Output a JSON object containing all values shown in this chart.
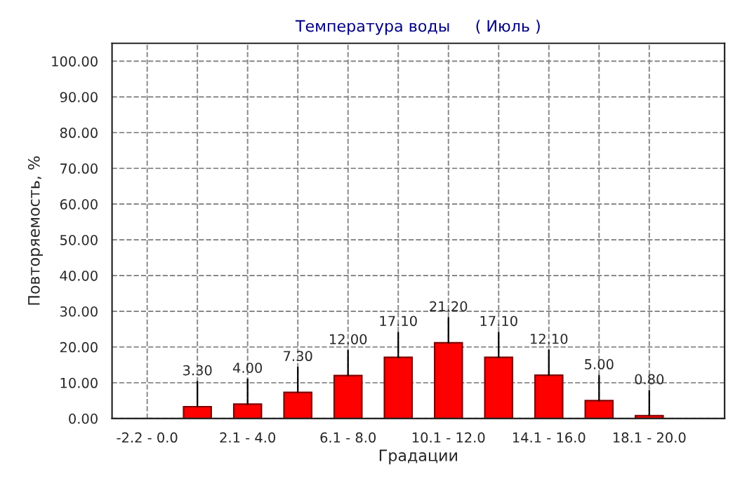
{
  "chart_data": {
    "type": "bar",
    "title": "Температура воды     ( Июль )",
    "xlabel": "Градации",
    "ylabel": "Повторяемость, %",
    "categories": [
      "-2.2 - 0.0",
      null,
      "2.1 - 4.0",
      null,
      "6.1 - 8.0",
      null,
      "10.1 - 12.0",
      null,
      "14.1 - 16.0",
      null,
      "18.1 - 20.0"
    ],
    "values": [
      null,
      3.3,
      4.0,
      7.3,
      12.0,
      17.1,
      21.2,
      17.1,
      12.1,
      5.0,
      0.8
    ],
    "value_labels": [
      null,
      "3.30",
      "4.00",
      "7.30",
      "12.00",
      "17.10",
      "21.20",
      "17.10",
      "12.10",
      "5.00",
      "0.80"
    ],
    "color": "#ff0000",
    "ylim": [
      0,
      105
    ],
    "yticks": [
      {
        "value": 0,
        "label": "0.00"
      },
      {
        "value": 10,
        "label": "10.00"
      },
      {
        "value": 20,
        "label": "20.00"
      },
      {
        "value": 30,
        "label": "30.00"
      },
      {
        "value": 40,
        "label": "40.00"
      },
      {
        "value": 50,
        "label": "50.00"
      },
      {
        "value": 60,
        "label": "60.00"
      },
      {
        "value": 70,
        "label": "70.00"
      },
      {
        "value": 80,
        "label": "80.00"
      },
      {
        "value": 90,
        "label": "90.00"
      },
      {
        "value": 100,
        "label": "100.00"
      }
    ],
    "grid": true,
    "legend": false
  }
}
